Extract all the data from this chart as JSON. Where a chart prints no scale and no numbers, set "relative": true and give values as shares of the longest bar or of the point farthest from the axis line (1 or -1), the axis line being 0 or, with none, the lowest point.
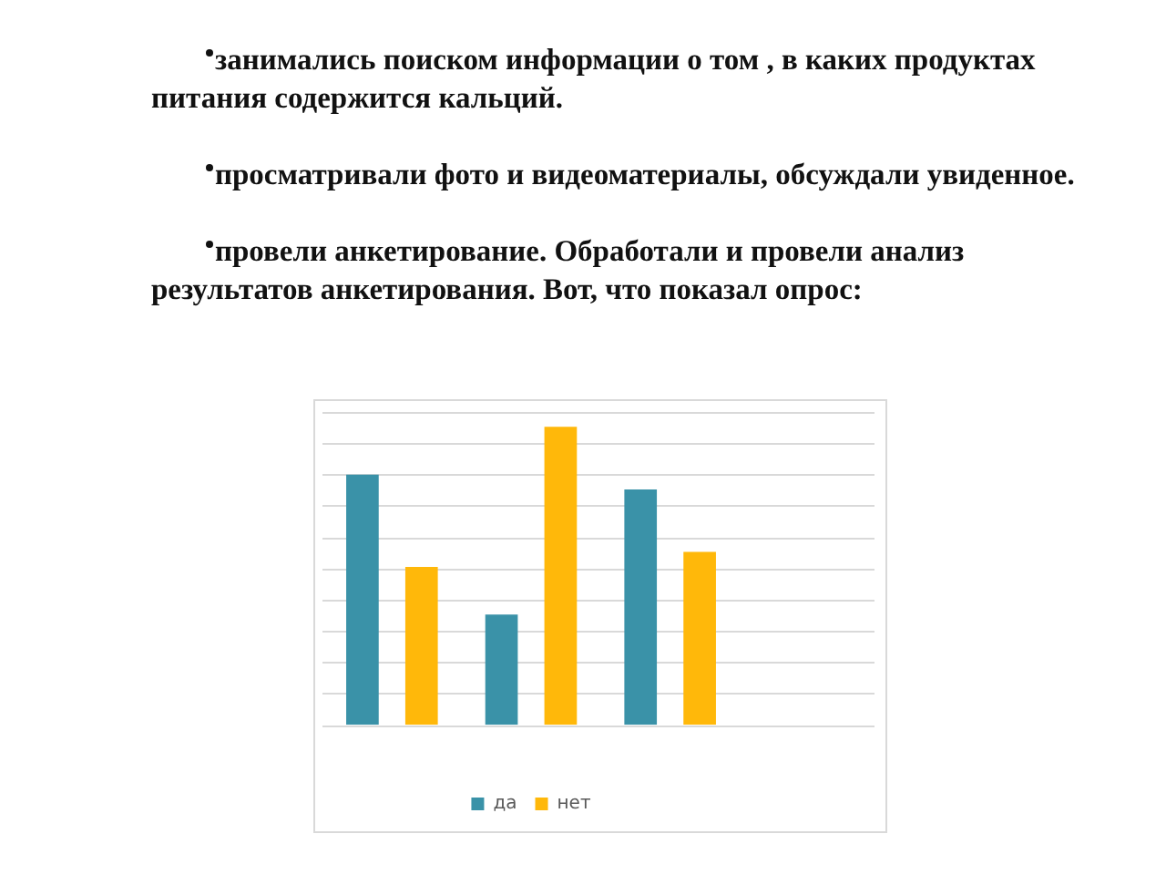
{
  "chart_data": {
    "type": "bar",
    "annotations": [
      "занимались поиском информации о том , в  каких продуктах питания содержится кальций.",
      "просматривали фото и видеоматериалы, обсуждали увиденное.",
      "провели анкетирование. Обработали и провели анализ результатов анкетирования. Вот, что показал опрос:"
    ],
    "categories": [
      null,
      null,
      null
    ],
    "relative": true,
    "series": [
      {
        "name": "да",
        "color": "#3a92a8",
        "values": [
          0.84,
          0.37,
          0.79
        ]
      },
      {
        "name": "нет",
        "color": "#ffb80a",
        "values": [
          0.53,
          1,
          0.58
        ]
      }
    ],
    "grid": "y",
    "legend": "bottom"
  }
}
